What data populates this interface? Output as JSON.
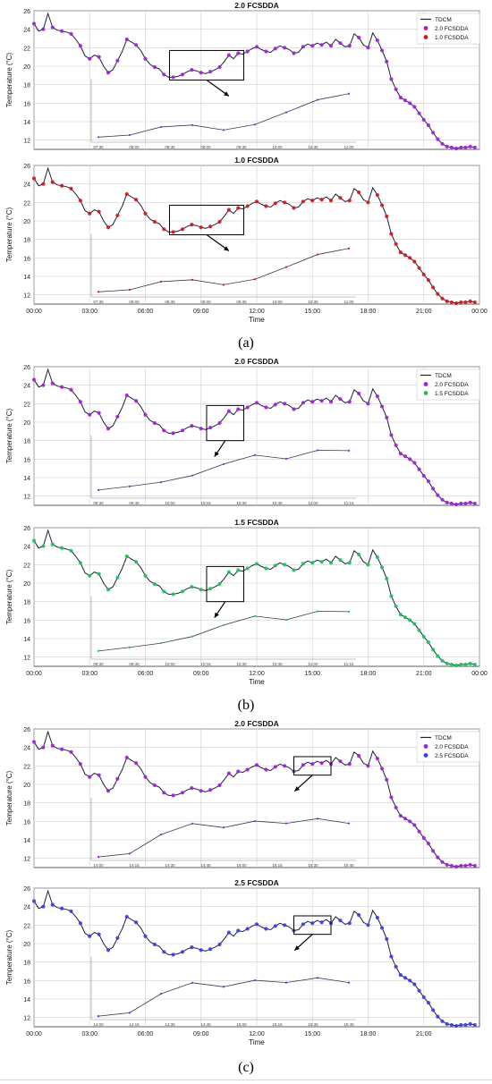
{
  "panel_labels": [
    "(a)",
    "(b)",
    "(c)"
  ],
  "colors": {
    "tdcm_line": "#1f1f3a",
    "purple": "#a11fd8",
    "red": "#d41616",
    "green": "#1ec25a",
    "blue": "#3c3ce6",
    "inset_line": "#3a3a55",
    "grid": "#d0d0d0",
    "axis": "#333333"
  },
  "chart_data": [
    {
      "type": "line",
      "panel": "(a)",
      "title": "2.0 FCSDDA",
      "xlabel": "",
      "ylabel": "Temperature (°C)",
      "ylim": [
        11,
        26
      ],
      "yticks": [
        12,
        14,
        16,
        18,
        20,
        22,
        24,
        26
      ],
      "xticks": [
        "00:00",
        "03:00",
        "06:00",
        "09:00",
        "12:00",
        "15:00",
        "18:00",
        "21:00",
        "00:00"
      ],
      "show_xticks": false,
      "marker_color": "purple",
      "legend": [
        "TDCM",
        "2.0 FCSDDA",
        "1.0 FCSDDA"
      ],
      "legend_colors": [
        "tdcm_line",
        "purple",
        "red"
      ],
      "legend_position": "top-right",
      "grid": true,
      "zoom_box": {
        "x0": 7.3,
        "x1": 11.3,
        "y0": 18.5,
        "y1": 21.7
      },
      "inset_window": [
        7.3,
        11.1
      ],
      "inset_tick_labels": [
        "07:30",
        "08:00",
        "08:30",
        "09:00",
        "09:30",
        "10:00",
        "10:30",
        "11:00"
      ],
      "inset_ylim": [
        18.5,
        22
      ]
    },
    {
      "type": "line",
      "panel": "(a)",
      "title": "1.0 FCSDDA",
      "xlabel": "Time",
      "ylabel": "Temperature (°C)",
      "ylim": [
        11,
        26
      ],
      "yticks": [
        12,
        14,
        16,
        18,
        20,
        22,
        24,
        26
      ],
      "xticks": [
        "00:00",
        "03:00",
        "06:00",
        "09:00",
        "12:00",
        "15:00",
        "18:00",
        "21:00",
        "00:00"
      ],
      "show_xticks": true,
      "marker_color": "red",
      "legend": [],
      "legend_colors": [],
      "grid": true,
      "zoom_box": {
        "x0": 7.3,
        "x1": 11.3,
        "y0": 18.5,
        "y1": 21.7
      },
      "inset_window": [
        7.3,
        11.1
      ],
      "inset_tick_labels": [
        "07:30",
        "08:00",
        "08:30",
        "09:00",
        "09:30",
        "10:00",
        "10:30",
        "11:00"
      ],
      "inset_ylim": [
        18.5,
        22
      ]
    },
    {
      "type": "line",
      "panel": "(b)",
      "title": "2.0 FCSDDA",
      "xlabel": "",
      "ylabel": "Temperature (°C)",
      "ylim": [
        11,
        26
      ],
      "yticks": [
        12,
        14,
        16,
        18,
        20,
        22,
        24,
        26
      ],
      "xticks": [
        "00:00",
        "03:00",
        "06:00",
        "09:00",
        "12:00",
        "15:00",
        "18:00",
        "21:00",
        "00:00"
      ],
      "show_xticks": false,
      "marker_color": "purple",
      "legend": [
        "TDCM",
        "2.0 FCSDDA",
        "1.5 FCSDDA"
      ],
      "legend_colors": [
        "tdcm_line",
        "purple",
        "green"
      ],
      "legend_position": "top-right",
      "grid": true,
      "zoom_box": {
        "x0": 9.3,
        "x1": 11.3,
        "y0": 18.0,
        "y1": 21.8
      },
      "inset_window": [
        9.3,
        11.3
      ],
      "inset_tick_labels": [
        "09:30",
        "09:45",
        "10:00",
        "10:15",
        "10:30",
        "10:45",
        "11:00",
        "11:15"
      ],
      "inset_ylim": [
        18.8,
        22
      ]
    },
    {
      "type": "line",
      "panel": "(b)",
      "title": "1.5 FCSDDA",
      "xlabel": "Time",
      "ylabel": "Temperature (°C)",
      "ylim": [
        11,
        26
      ],
      "yticks": [
        12,
        14,
        16,
        18,
        20,
        22,
        24,
        26
      ],
      "xticks": [
        "00:00",
        "03:00",
        "06:00",
        "09:00",
        "12:00",
        "15:00",
        "18:00",
        "21:00",
        "00:00"
      ],
      "show_xticks": true,
      "marker_color": "green",
      "legend": [],
      "legend_colors": [],
      "grid": true,
      "zoom_box": {
        "x0": 9.3,
        "x1": 11.3,
        "y0": 18.0,
        "y1": 21.8
      },
      "inset_window": [
        9.3,
        11.3
      ],
      "inset_tick_labels": [
        "09:30",
        "09:45",
        "10:00",
        "10:15",
        "10:30",
        "10:45",
        "11:00",
        "11:15"
      ],
      "inset_ylim": [
        18.8,
        22
      ]
    },
    {
      "type": "line",
      "panel": "(c)",
      "title": "2.0 FCSDDA",
      "xlabel": "",
      "ylabel": "Temperature (°C)",
      "ylim": [
        11,
        26
      ],
      "yticks": [
        12,
        14,
        16,
        18,
        20,
        22,
        24,
        26
      ],
      "xticks": [
        "00:00",
        "03:00",
        "06:00",
        "09:00",
        "12:00",
        "15:00",
        "18:00",
        "21:00",
        "00:00"
      ],
      "show_xticks": false,
      "marker_color": "purple",
      "legend": [
        "TDCM",
        "2.0 FCSDDA",
        "2.5 FCSDDA"
      ],
      "legend_colors": [
        "tdcm_line",
        "purple",
        "blue"
      ],
      "legend_position": "top-right",
      "grid": true,
      "zoom_box": {
        "x0": 14.0,
        "x1": 16.0,
        "y0": 21.0,
        "y1": 23.0
      },
      "inset_window": [
        14.0,
        15.9
      ],
      "inset_tick_labels": [
        "14:00",
        "14:15",
        "14:30",
        "14:45",
        "15:00",
        "15:15",
        "15:30",
        "15:45"
      ],
      "inset_ylim": [
        21.3,
        23.0
      ]
    },
    {
      "type": "line",
      "panel": "(c)",
      "title": "2.5 FCSDDA",
      "xlabel": "Time",
      "ylabel": "Temperature (°C)",
      "ylim": [
        11,
        26
      ],
      "yticks": [
        12,
        14,
        16,
        18,
        20,
        22,
        24,
        26
      ],
      "xticks": [
        "00:00",
        "03:00",
        "06:00",
        "09:00",
        "12:00",
        "15:00",
        "18:00",
        "21:00"
      ],
      "show_xticks": true,
      "marker_color": "blue",
      "legend": [],
      "legend_colors": [],
      "grid": true,
      "zoom_box": {
        "x0": 14.0,
        "x1": 16.0,
        "y0": 21.0,
        "y1": 23.0
      },
      "inset_window": [
        14.0,
        15.9
      ],
      "inset_tick_labels": [
        "14:00",
        "14:15",
        "14:30",
        "14:45",
        "15:00",
        "15:15",
        "15:30",
        "15:45"
      ],
      "inset_ylim": [
        21.3,
        23.0
      ]
    }
  ],
  "series_tdcm": {
    "name": "TDCM",
    "x_hours": [
      0,
      0.25,
      0.5,
      0.75,
      1.0,
      1.25,
      1.5,
      1.75,
      2.0,
      2.25,
      2.5,
      2.75,
      3.0,
      3.25,
      3.5,
      3.75,
      4.0,
      4.25,
      4.5,
      4.75,
      5.0,
      5.25,
      5.5,
      5.75,
      6.0,
      6.25,
      6.5,
      6.75,
      7.0,
      7.25,
      7.5,
      7.75,
      8.0,
      8.25,
      8.5,
      8.75,
      9.0,
      9.25,
      9.5,
      9.75,
      10.0,
      10.25,
      10.5,
      10.75,
      11.0,
      11.25,
      11.5,
      11.75,
      12.0,
      12.25,
      12.5,
      12.75,
      13.0,
      13.25,
      13.5,
      13.75,
      14.0,
      14.25,
      14.5,
      14.75,
      15.0,
      15.25,
      15.5,
      15.75,
      16.0,
      16.25,
      16.5,
      16.75,
      17.0,
      17.25,
      17.5,
      17.75,
      18.0,
      18.25,
      18.5,
      18.75,
      19.0,
      19.25,
      19.5,
      19.75,
      20.0,
      20.25,
      20.5,
      20.75,
      21.0,
      21.25,
      21.5,
      21.75,
      22.0,
      22.25,
      22.5,
      22.75,
      23.0,
      23.25,
      23.5,
      23.75
    ],
    "temp_c": [
      24.6,
      23.8,
      24.0,
      25.7,
      24.2,
      23.9,
      23.8,
      23.7,
      23.5,
      22.9,
      22.2,
      21.1,
      20.8,
      21.2,
      21.0,
      20.0,
      19.3,
      19.6,
      20.6,
      21.6,
      22.9,
      22.6,
      22.3,
      21.7,
      20.8,
      20.2,
      19.9,
      19.7,
      19.1,
      18.8,
      18.8,
      18.9,
      19.1,
      19.4,
      19.6,
      19.5,
      19.3,
      19.2,
      19.4,
      19.6,
      19.9,
      20.5,
      21.2,
      20.8,
      21.4,
      21.3,
      21.6,
      21.9,
      22.1,
      21.8,
      21.6,
      21.5,
      21.9,
      22.2,
      22.0,
      21.8,
      21.4,
      21.5,
      22.1,
      22.4,
      22.2,
      22.5,
      22.3,
      22.6,
      22.2,
      22.9,
      22.5,
      22.1,
      22.2,
      23.5,
      23.1,
      22.3,
      22.0,
      23.6,
      22.8,
      21.7,
      20.5,
      18.6,
      17.5,
      16.6,
      16.3,
      16.0,
      15.6,
      14.9,
      14.2,
      13.6,
      12.8,
      12.1,
      11.6,
      11.3,
      11.2,
      11.1,
      11.2,
      11.2,
      11.3,
      11.2
    ]
  }
}
